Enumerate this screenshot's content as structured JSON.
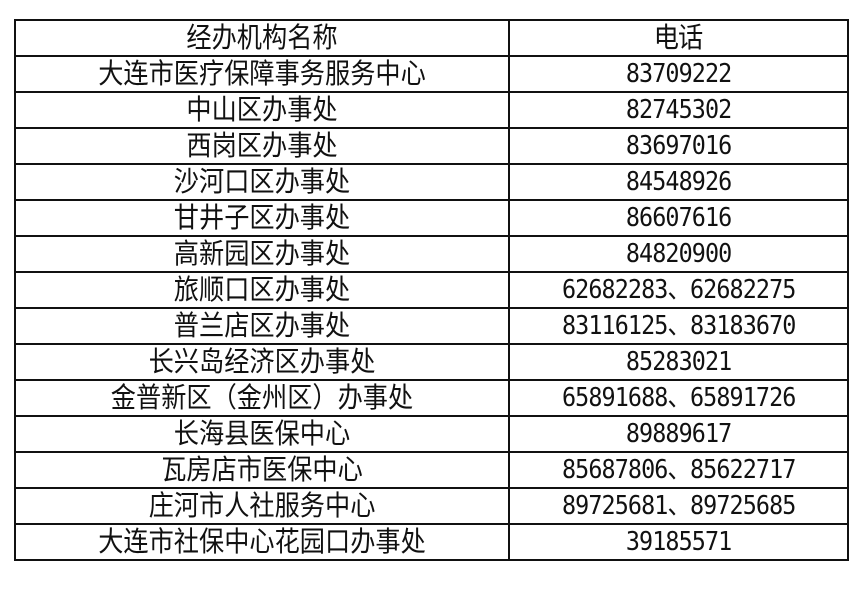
{
  "table": {
    "headers": [
      "经办机构名称",
      "电话"
    ],
    "rows": [
      {
        "name": "大连市医疗保障事务服务中心",
        "phone": "83709222"
      },
      {
        "name": "中山区办事处",
        "phone": "82745302"
      },
      {
        "name": "西岗区办事处",
        "phone": "83697016"
      },
      {
        "name": "沙河口区办事处",
        "phone": "84548926"
      },
      {
        "name": "甘井子区办事处",
        "phone": "86607616"
      },
      {
        "name": "高新园区办事处",
        "phone": "84820900"
      },
      {
        "name": "旅顺口区办事处",
        "phone": "62682283、62682275"
      },
      {
        "name": "普兰店区办事处",
        "phone": "83116125、83183670"
      },
      {
        "name": "长兴岛经济区办事处",
        "phone": "85283021"
      },
      {
        "name": "金普新区（金州区）办事处",
        "phone": "65891688、65891726"
      },
      {
        "name": "长海县医保中心",
        "phone": "89889617"
      },
      {
        "name": "瓦房店市医保中心",
        "phone": "85687806、85622717"
      },
      {
        "name": "庄河市人社服务中心",
        "phone": "89725681、89725685"
      },
      {
        "name": "大连市社保中心花园口办事处",
        "phone": "39185571"
      }
    ]
  }
}
